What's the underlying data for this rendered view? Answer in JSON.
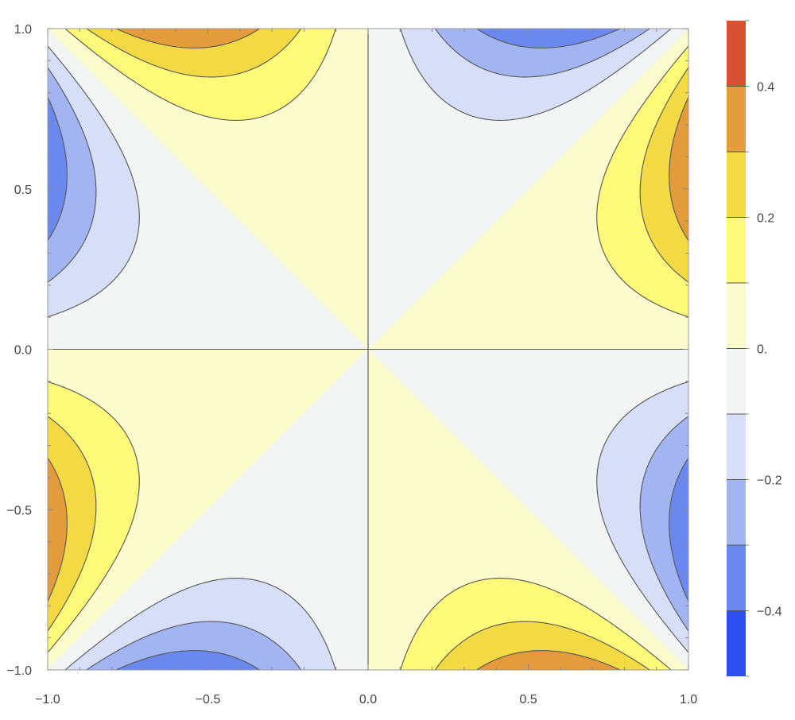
{
  "chart_data": {
    "type": "contour",
    "function": "x*y*(x^2 - y^2)",
    "xlim": [
      -1.0,
      1.0
    ],
    "ylim": [
      -1.0,
      1.0
    ],
    "x_ticks": [
      {
        "value": -1.0,
        "label": "−1.0"
      },
      {
        "value": -0.5,
        "label": "−0.5"
      },
      {
        "value": 0.0,
        "label": "0.0"
      },
      {
        "value": 0.5,
        "label": "0.5"
      },
      {
        "value": 1.0,
        "label": "1.0"
      }
    ],
    "y_ticks": [
      {
        "value": -1.0,
        "label": "−1.0"
      },
      {
        "value": -0.5,
        "label": "−0.5"
      },
      {
        "value": 0.0,
        "label": "0.0"
      },
      {
        "value": 0.5,
        "label": "0.5"
      },
      {
        "value": 1.0,
        "label": "1.0"
      }
    ],
    "contour_levels": [
      -0.4,
      -0.3,
      -0.2,
      -0.1,
      0.0,
      0.1,
      0.2,
      0.3,
      0.4
    ],
    "band_colors": [
      {
        "min": -0.5,
        "max": -0.4,
        "color": "#2d4ef0"
      },
      {
        "min": -0.4,
        "max": -0.3,
        "color": "#6b88ee"
      },
      {
        "min": -0.3,
        "max": -0.2,
        "color": "#a3b4f2"
      },
      {
        "min": -0.2,
        "max": -0.1,
        "color": "#d6dff7"
      },
      {
        "min": -0.1,
        "max": 0.0,
        "color": "#f3f4f4"
      },
      {
        "min": 0.0,
        "max": 0.1,
        "color": "#fcfbcd"
      },
      {
        "min": 0.1,
        "max": 0.2,
        "color": "#fdf979"
      },
      {
        "min": 0.2,
        "max": 0.3,
        "color": "#f3da45"
      },
      {
        "min": 0.3,
        "max": 0.4,
        "color": "#e39b3c"
      },
      {
        "min": 0.4,
        "max": 0.5,
        "color": "#d55130"
      }
    ],
    "legend": {
      "placement": "right",
      "range": [
        -0.5,
        0.5
      ],
      "ticks": [
        {
          "value": 0.4,
          "label": "0.4"
        },
        {
          "value": 0.2,
          "label": "0.2"
        },
        {
          "value": 0.0,
          "label": "0."
        },
        {
          "value": -0.2,
          "label": "−0.2"
        },
        {
          "value": -0.4,
          "label": "−0.4"
        }
      ]
    },
    "grid": false
  }
}
